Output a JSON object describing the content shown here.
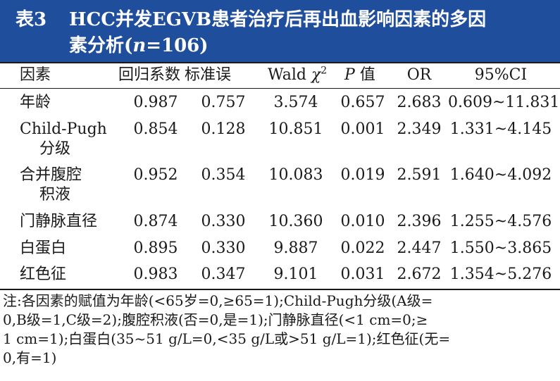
{
  "title": {
    "label": "表3",
    "line1": "HCC并发EGVB患者治疗后再出血影响因素的多因",
    "line2_prefix": "素分析(",
    "line2_n": "n",
    "line2_suffix": "=106)"
  },
  "table": {
    "headers": {
      "factor": "因素",
      "coef": "回归系数",
      "se": "标准误",
      "wald": "Wald",
      "wald_chi": "χ",
      "wald_sup": "2",
      "p_italic": "P",
      "p_value": "值",
      "or": "OR",
      "ci": "95%CI"
    },
    "rows": [
      {
        "factor": "年龄",
        "factor_2": "",
        "coef": "0.987",
        "se": "0.757",
        "wald": "3.574",
        "p": "0.657",
        "or": "2.683",
        "ci": "0.609~11.831"
      },
      {
        "factor": "Child-Pugh",
        "factor_2": "分级",
        "coef": "0.854",
        "se": "0.128",
        "wald": "10.851",
        "p": "0.001",
        "or": "2.349",
        "ci": "1.331~4.145"
      },
      {
        "factor": "合并腹腔",
        "factor_2": "积液",
        "coef": "0.952",
        "se": "0.354",
        "wald": "10.083",
        "p": "0.019",
        "or": "2.591",
        "ci": "1.640~4.092"
      },
      {
        "factor": "门静脉直径",
        "factor_2": "",
        "coef": "0.874",
        "se": "0.330",
        "wald": "10.360",
        "p": "0.010",
        "or": "2.396",
        "ci": "1.255~4.576"
      },
      {
        "factor": "白蛋白",
        "factor_2": "",
        "coef": "0.895",
        "se": "0.330",
        "wald": "9.887",
        "p": "0.022",
        "or": "2.447",
        "ci": "1.550~3.865"
      },
      {
        "factor": "红色征",
        "factor_2": "",
        "coef": "0.983",
        "se": "0.347",
        "wald": "9.101",
        "p": "0.031",
        "or": "2.672",
        "ci": "1.354~5.276"
      }
    ]
  },
  "note": {
    "line1": "注:各因素的赋值为年龄(<65岁=0,≥65=1);Child-Pugh分级(A级=",
    "line2": "0,B级=1,C级=2);腹腔积液(否=0,是=1);门静脉直径(<1 cm=0;≥",
    "line3": "1 cm=1);白蛋白(35~51 g/L=0,<35 g/L或>51 g/L=1);红色征(无=",
    "line4": "0,有=1)"
  }
}
